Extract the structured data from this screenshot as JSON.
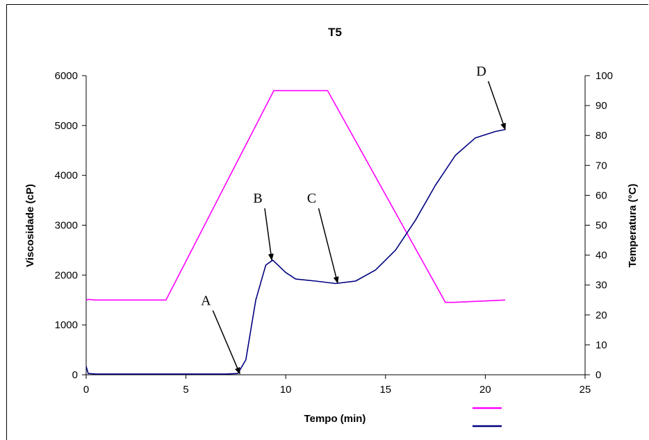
{
  "chart_data": {
    "type": "line",
    "title": "T5",
    "xlabel": "Tempo (min)",
    "ylabel_left": "Viscosidade (cP)",
    "ylabel_right": "Temperatura (°C)",
    "xlim": [
      0,
      25
    ],
    "ylim_left": [
      0,
      6000
    ],
    "ylim_right": [
      0,
      100
    ],
    "x_ticks": [
      "0",
      "5",
      "10",
      "15",
      "20",
      "25"
    ],
    "y_left_ticks": [
      "0",
      "1000",
      "2000",
      "3000",
      "4000",
      "5000",
      "6000"
    ],
    "y_right_ticks": [
      "0",
      "10",
      "20",
      "30",
      "40",
      "50",
      "60",
      "70",
      "80",
      "90",
      "100"
    ],
    "grid": false,
    "legend": "bottom-right (colour swatches only, no labels)",
    "series": [
      {
        "axis": "right",
        "color": "#ff00ff",
        "points": [
          [
            0,
            25
          ],
          [
            0.1,
            25.2
          ],
          [
            0.5,
            25
          ],
          [
            1,
            25
          ],
          [
            4,
            25
          ],
          [
            9.4,
            95
          ],
          [
            12.1,
            95
          ],
          [
            18,
            24.2
          ],
          [
            18.4,
            24.2
          ],
          [
            21,
            25
          ]
        ]
      },
      {
        "axis": "left",
        "color": "#000080",
        "points": [
          [
            0,
            170
          ],
          [
            0.1,
            25
          ],
          [
            0.5,
            15
          ],
          [
            7.0,
            15
          ],
          [
            7.6,
            25
          ],
          [
            8.0,
            300
          ],
          [
            8.5,
            1500
          ],
          [
            9.0,
            2200
          ],
          [
            9.35,
            2300
          ],
          [
            10.0,
            2050
          ],
          [
            10.5,
            1920
          ],
          [
            11.5,
            1880
          ],
          [
            12.5,
            1830
          ],
          [
            13.5,
            1880
          ],
          [
            14.5,
            2100
          ],
          [
            15.5,
            2500
          ],
          [
            16.5,
            3100
          ],
          [
            17.5,
            3800
          ],
          [
            18.5,
            4400
          ],
          [
            19.5,
            4750
          ],
          [
            20.5,
            4880
          ],
          [
            21.0,
            4920
          ]
        ]
      }
    ],
    "annotations": [
      {
        "label": "A",
        "x": 7.7,
        "y": 20,
        "text_x": 6.0,
        "text_y": 1400
      },
      {
        "label": "B",
        "x": 9.3,
        "y": 2300,
        "text_x": 8.6,
        "text_y": 3450
      },
      {
        "label": "C",
        "x": 12.6,
        "y": 1840,
        "text_x": 11.3,
        "text_y": 3450
      },
      {
        "label": "D",
        "x": 21.0,
        "y": 4920,
        "text_x": 19.8,
        "text_y": 6000
      }
    ]
  },
  "legend_swatches": [
    {
      "color": "#ff00ff"
    },
    {
      "color": "#000080"
    }
  ]
}
